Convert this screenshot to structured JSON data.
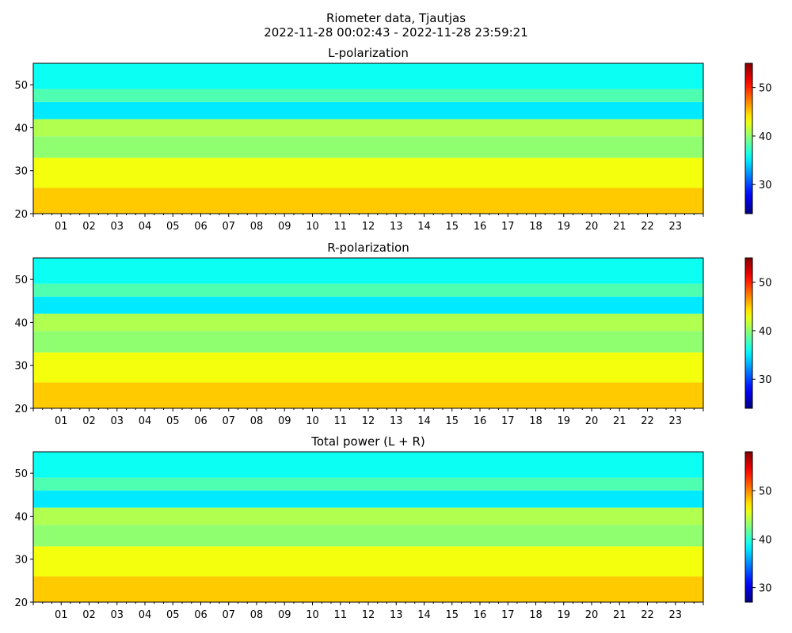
{
  "suptitle": {
    "line1": "Riometer data, Tjautjas",
    "line2": "2022-11-28 00:02:43 - 2022-11-28 23:59:21"
  },
  "chart_data": [
    {
      "type": "heatmap",
      "title": "L-polarization",
      "xlabel": "",
      "ylabel": "",
      "x_range_hours": [
        0,
        24
      ],
      "ylim": [
        20,
        55
      ],
      "y_ticks": [
        20,
        30,
        40,
        50
      ],
      "x_tick_labels": [
        "01",
        "02",
        "03",
        "04",
        "05",
        "06",
        "07",
        "08",
        "09",
        "10",
        "11",
        "12",
        "13",
        "14",
        "15",
        "16",
        "17",
        "18",
        "19",
        "20",
        "21",
        "22",
        "23"
      ],
      "colormap": "jet",
      "colorbar": {
        "range": [
          24,
          55
        ],
        "ticks": [
          30,
          40,
          50
        ]
      },
      "description_bands": [
        {
          "y_from": 20,
          "y_to": 26,
          "level": 45
        },
        {
          "y_from": 26,
          "y_to": 33,
          "level": 43
        },
        {
          "y_from": 33,
          "y_to": 38,
          "level": 40
        },
        {
          "y_from": 38,
          "y_to": 42,
          "level": 41
        },
        {
          "y_from": 42,
          "y_to": 46,
          "level": 35
        },
        {
          "y_from": 46,
          "y_to": 49,
          "level": 38
        },
        {
          "y_from": 49,
          "y_to": 55,
          "level": 36
        }
      ]
    },
    {
      "type": "heatmap",
      "title": "R-polarization",
      "xlabel": "",
      "ylabel": "",
      "x_range_hours": [
        0,
        24
      ],
      "ylim": [
        20,
        55
      ],
      "y_ticks": [
        20,
        30,
        40,
        50
      ],
      "x_tick_labels": [
        "01",
        "02",
        "03",
        "04",
        "05",
        "06",
        "07",
        "08",
        "09",
        "10",
        "11",
        "12",
        "13",
        "14",
        "15",
        "16",
        "17",
        "18",
        "19",
        "20",
        "21",
        "22",
        "23"
      ],
      "colormap": "jet",
      "colorbar": {
        "range": [
          24,
          55
        ],
        "ticks": [
          30,
          40,
          50
        ]
      },
      "description_bands": [
        {
          "y_from": 20,
          "y_to": 26,
          "level": 45
        },
        {
          "y_from": 26,
          "y_to": 33,
          "level": 43
        },
        {
          "y_from": 33,
          "y_to": 38,
          "level": 40
        },
        {
          "y_from": 38,
          "y_to": 42,
          "level": 41
        },
        {
          "y_from": 42,
          "y_to": 46,
          "level": 35
        },
        {
          "y_from": 46,
          "y_to": 49,
          "level": 38
        },
        {
          "y_from": 49,
          "y_to": 55,
          "level": 36
        }
      ]
    },
    {
      "type": "heatmap",
      "title": "Total power (L + R)",
      "xlabel": "",
      "ylabel": "",
      "x_range_hours": [
        0,
        24
      ],
      "ylim": [
        20,
        55
      ],
      "y_ticks": [
        20,
        30,
        40,
        50
      ],
      "x_tick_labels": [
        "01",
        "02",
        "03",
        "04",
        "05",
        "06",
        "07",
        "08",
        "09",
        "10",
        "11",
        "12",
        "13",
        "14",
        "15",
        "16",
        "17",
        "18",
        "19",
        "20",
        "21",
        "22",
        "23"
      ],
      "colormap": "jet",
      "colorbar": {
        "range": [
          27,
          58
        ],
        "ticks": [
          30,
          40,
          50
        ]
      },
      "description_bands": [
        {
          "y_from": 20,
          "y_to": 26,
          "level": 48
        },
        {
          "y_from": 26,
          "y_to": 33,
          "level": 46
        },
        {
          "y_from": 33,
          "y_to": 38,
          "level": 43
        },
        {
          "y_from": 38,
          "y_to": 42,
          "level": 44
        },
        {
          "y_from": 42,
          "y_to": 46,
          "level": 38
        },
        {
          "y_from": 46,
          "y_to": 49,
          "level": 41
        },
        {
          "y_from": 49,
          "y_to": 55,
          "level": 39
        }
      ]
    }
  ]
}
